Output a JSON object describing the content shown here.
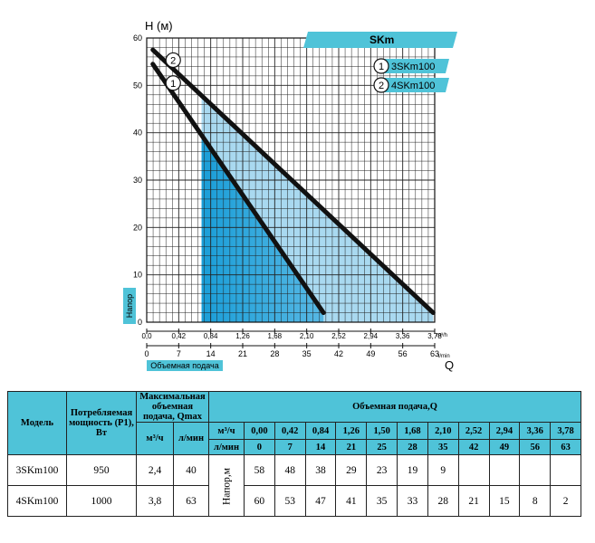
{
  "chart_data": {
    "type": "line",
    "y_label": "H (м)",
    "y_axis_caption": "Напор",
    "x_label": "Q",
    "x_axis_caption": "Объемная подача",
    "x_unit_m3h": "m³/h",
    "x_unit_lmin": "l/min",
    "y_ticks": [
      0,
      10,
      20,
      30,
      40,
      50,
      60
    ],
    "x_ticks_m3h": [
      "0,0",
      "0,42",
      "0,84",
      "1,26",
      "1,68",
      "2,10",
      "2,52",
      "2,94",
      "3,36",
      "3,78"
    ],
    "x_ticks_lmin": [
      "0",
      "7",
      "14",
      "21",
      "28",
      "35",
      "42",
      "49",
      "56",
      "63"
    ],
    "xlim": [
      0,
      3.78
    ],
    "ylim": [
      0,
      60
    ],
    "banner": "SKm",
    "series": [
      {
        "marker": "1",
        "name": "3SKm100",
        "x": [
          0.08,
          2.32
        ],
        "y": [
          54.5,
          2
        ]
      },
      {
        "marker": "2",
        "name": "4SKm100",
        "x": [
          0.08,
          3.76
        ],
        "y": [
          57.5,
          2
        ]
      }
    ],
    "operating_zone_start": 0.72
  },
  "table": {
    "col_model": "Модель",
    "col_power": "Потребляемая мощность (P1), Вт",
    "col_max_flow": "Максимальная объемная подача, Qmax",
    "col_flow": "Объемная подача,Q",
    "unit_m3h": "м³/ч",
    "unit_lmin": "л/мин",
    "head_label": "Напор,м",
    "flow_m3h": [
      "0,00",
      "0,42",
      "0,84",
      "1,26",
      "1,50",
      "1,68",
      "2,10",
      "2,52",
      "2,94",
      "3,36",
      "3,78"
    ],
    "flow_lmin": [
      "0",
      "7",
      "14",
      "21",
      "25",
      "28",
      "35",
      "42",
      "49",
      "56",
      "63"
    ],
    "rows": [
      {
        "model": "3SKm100",
        "power": "950",
        "qmax_m3h": "2,4",
        "qmax_lmin": "40",
        "heads": [
          "58",
          "48",
          "38",
          "29",
          "23",
          "19",
          "9",
          "",
          "",
          "",
          ""
        ]
      },
      {
        "model": "4SKm100",
        "power": "1000",
        "qmax_m3h": "3,8",
        "qmax_lmin": "63",
        "heads": [
          "60",
          "53",
          "47",
          "41",
          "35",
          "33",
          "28",
          "21",
          "15",
          "8",
          "2"
        ]
      }
    ]
  }
}
